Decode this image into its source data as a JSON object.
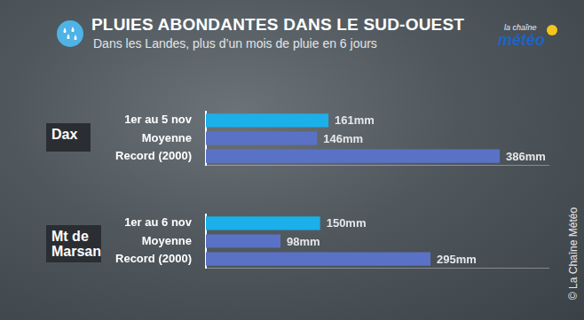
{
  "header": {
    "title": "PLUIES ABONDANTES DANS LE SUD-OUEST",
    "subtitle": "Dans les Landes, plus d’un mois de pluie en 6 jours",
    "logo": [
      "la chaîne",
      "météo"
    ],
    "credit": "© La Chaîne Météo"
  },
  "chart_data": [
    {
      "type": "bar",
      "title": "Dax",
      "orientation": "horizontal",
      "categories": [
        "1er au 5 nov",
        "Moyenne",
        "Record (2000)"
      ],
      "values": [
        161,
        146,
        386
      ],
      "value_labels": [
        "161mm",
        "146mm",
        "386mm"
      ],
      "colors": [
        "#1bb0ea",
        "#5a72c6",
        "#5a72c6"
      ],
      "xlim": [
        0,
        450
      ],
      "xticks": [],
      "grid": false,
      "legend": false,
      "data_labels": true,
      "tick_labels": "y"
    },
    {
      "type": "bar",
      "title": "Mt de Marsan",
      "orientation": "horizontal",
      "categories": [
        "1er au 6 nov",
        "Moyenne",
        "Record (2000)"
      ],
      "values": [
        150,
        98,
        295
      ],
      "value_labels": [
        "150mm",
        "98mm",
        "295mm"
      ],
      "colors": [
        "#1bb0ea",
        "#5a72c6",
        "#5a72c6"
      ],
      "xlim": [
        0,
        450
      ],
      "xticks": [],
      "grid": false,
      "legend": false,
      "data_labels": true,
      "tick_labels": "y"
    }
  ]
}
